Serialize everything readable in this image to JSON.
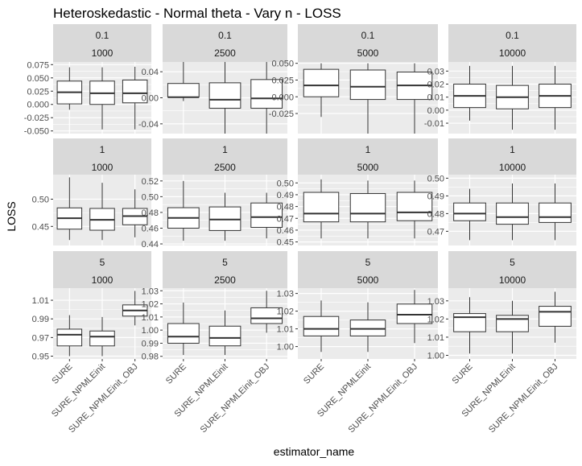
{
  "chart_data": {
    "type": "box",
    "title": "Heteroskedastic - Normal theta - Vary n - LOSS",
    "xlabel": "estimator_name",
    "ylabel": "LOSS",
    "categories": [
      "SURE",
      "SURE_NPMLEinit",
      "SURE_NPMLEinit_OBJ"
    ],
    "grid": true,
    "facets": [
      {
        "row_label": "0.1",
        "col_label": "1000",
        "ylim": [
          -0.055,
          0.08
        ],
        "ticks": [
          0.075,
          0.05,
          0.025,
          0.0,
          -0.025,
          -0.05
        ],
        "tick_labels": [
          "0.075",
          "0.050",
          "0.025",
          "0.000",
          "-0.025",
          "-0.050"
        ],
        "boxes": [
          {
            "min": -0.01,
            "q1": 0.001,
            "median": 0.023,
            "q3": 0.044,
            "max": 0.07
          },
          {
            "min": -0.047,
            "q1": 0.0,
            "median": 0.021,
            "q3": 0.044,
            "max": 0.07
          },
          {
            "min": -0.047,
            "q1": 0.003,
            "median": 0.021,
            "q3": 0.046,
            "max": 0.071
          }
        ]
      },
      {
        "row_label": "0.1",
        "col_label": "2500",
        "ylim": [
          -0.055,
          0.055
        ],
        "ticks": [
          0.04,
          0.0,
          -0.04
        ],
        "tick_labels": [
          "0.04",
          "0.00",
          "-0.04"
        ],
        "boxes": [
          {
            "min": -0.005,
            "q1": 0.001,
            "median": 0.001,
            "q3": 0.022,
            "max": 0.055
          },
          {
            "min": -0.055,
            "q1": -0.016,
            "median": -0.003,
            "q3": 0.023,
            "max": 0.055
          },
          {
            "min": -0.055,
            "q1": -0.016,
            "median": -0.001,
            "q3": 0.028,
            "max": 0.055
          }
        ]
      },
      {
        "row_label": "0.1",
        "col_label": "5000",
        "ylim": [
          -0.055,
          0.052
        ],
        "ticks": [
          0.05,
          0.025,
          0.0,
          -0.025
        ],
        "tick_labels": [
          "0.050",
          "0.025",
          "0.000",
          "-0.025"
        ],
        "boxes": [
          {
            "min": -0.03,
            "q1": 0.0,
            "median": 0.017,
            "q3": 0.041,
            "max": 0.05
          },
          {
            "min": -0.055,
            "q1": -0.004,
            "median": 0.015,
            "q3": 0.04,
            "max": 0.05
          },
          {
            "min": -0.055,
            "q1": -0.004,
            "median": 0.017,
            "q3": 0.037,
            "max": 0.05
          }
        ]
      },
      {
        "row_label": "0.1",
        "col_label": "10000",
        "ylim": [
          -0.018,
          0.037
        ],
        "ticks": [
          0.03,
          0.02,
          0.01,
          0.0,
          -0.01
        ],
        "tick_labels": [
          "0.03",
          "0.02",
          "0.01",
          "0.00",
          "-0.01"
        ],
        "boxes": [
          {
            "min": -0.008,
            "q1": 0.002,
            "median": 0.011,
            "q3": 0.02,
            "max": 0.034
          },
          {
            "min": -0.015,
            "q1": 0.001,
            "median": 0.01,
            "q3": 0.019,
            "max": 0.034
          },
          {
            "min": -0.015,
            "q1": 0.002,
            "median": 0.011,
            "q3": 0.02,
            "max": 0.034
          }
        ]
      },
      {
        "row_label": "1",
        "col_label": "1000",
        "ylim": [
          0.415,
          0.545
        ],
        "ticks": [
          0.5,
          0.45
        ],
        "tick_labels": [
          "0.50",
          "0.45"
        ],
        "boxes": [
          {
            "min": 0.425,
            "q1": 0.445,
            "median": 0.465,
            "q3": 0.484,
            "max": 0.54
          },
          {
            "min": 0.425,
            "q1": 0.443,
            "median": 0.462,
            "q3": 0.483,
            "max": 0.53
          },
          {
            "min": 0.43,
            "q1": 0.453,
            "median": 0.469,
            "q3": 0.483,
            "max": 0.518
          }
        ]
      },
      {
        "row_label": "1",
        "col_label": "2500",
        "ylim": [
          0.438,
          0.528
        ],
        "ticks": [
          0.52,
          0.5,
          0.48,
          0.46,
          0.44
        ],
        "tick_labels": [
          "0.52",
          "0.50",
          "0.48",
          "0.46",
          "0.44"
        ],
        "boxes": [
          {
            "min": 0.444,
            "q1": 0.46,
            "median": 0.473,
            "q3": 0.486,
            "max": 0.52
          },
          {
            "min": 0.444,
            "q1": 0.457,
            "median": 0.471,
            "q3": 0.487,
            "max": 0.505
          },
          {
            "min": 0.447,
            "q1": 0.461,
            "median": 0.474,
            "q3": 0.492,
            "max": 0.505
          }
        ]
      },
      {
        "row_label": "1",
        "col_label": "5000",
        "ylim": [
          0.447,
          0.507
        ],
        "ticks": [
          0.5,
          0.49,
          0.48,
          0.47,
          0.46,
          0.45
        ],
        "tick_labels": [
          "0.50",
          "0.49",
          "0.48",
          "0.47",
          "0.46",
          "0.45"
        ],
        "boxes": [
          {
            "min": 0.453,
            "q1": 0.467,
            "median": 0.474,
            "q3": 0.492,
            "max": 0.503
          },
          {
            "min": 0.453,
            "q1": 0.467,
            "median": 0.474,
            "q3": 0.491,
            "max": 0.502
          },
          {
            "min": 0.453,
            "q1": 0.468,
            "median": 0.475,
            "q3": 0.492,
            "max": 0.502
          }
        ]
      },
      {
        "row_label": "1",
        "col_label": "10000",
        "ylim": [
          0.462,
          0.502
        ],
        "ticks": [
          0.5,
          0.49,
          0.48,
          0.47
        ],
        "tick_labels": [
          "0.50",
          "0.49",
          "0.48",
          "0.47"
        ],
        "boxes": [
          {
            "min": 0.465,
            "q1": 0.476,
            "median": 0.48,
            "q3": 0.486,
            "max": 0.494
          },
          {
            "min": 0.465,
            "q1": 0.474,
            "median": 0.478,
            "q3": 0.486,
            "max": 0.497
          },
          {
            "min": 0.465,
            "q1": 0.475,
            "median": 0.478,
            "q3": 0.486,
            "max": 0.497
          }
        ]
      },
      {
        "row_label": "5",
        "col_label": "1000",
        "ylim": [
          0.947,
          1.023
        ],
        "ticks": [
          1.01,
          0.99,
          0.97,
          0.95
        ],
        "tick_labels": [
          "1.01",
          "0.99",
          "0.97",
          "0.95"
        ],
        "boxes": [
          {
            "min": 0.95,
            "q1": 0.961,
            "median": 0.973,
            "q3": 0.979,
            "max": 0.994
          },
          {
            "min": 0.95,
            "q1": 0.961,
            "median": 0.971,
            "q3": 0.977,
            "max": 0.992
          },
          {
            "min": 0.983,
            "q1": 0.993,
            "median": 0.999,
            "q3": 1.005,
            "max": 1.02
          }
        ]
      },
      {
        "row_label": "5",
        "col_label": "2500",
        "ylim": [
          0.978,
          1.032
        ],
        "ticks": [
          1.03,
          1.02,
          1.01,
          1.0,
          0.99,
          0.98
        ],
        "tick_labels": [
          "1.03",
          "1.02",
          "1.01",
          "1.00",
          "0.99",
          "0.98"
        ],
        "boxes": [
          {
            "min": 0.981,
            "q1": 0.99,
            "median": 0.995,
            "q3": 1.005,
            "max": 1.021
          },
          {
            "min": 0.981,
            "q1": 0.988,
            "median": 0.994,
            "q3": 1.003,
            "max": 1.015
          },
          {
            "min": 0.998,
            "q1": 1.005,
            "median": 1.009,
            "q3": 1.017,
            "max": 1.03
          }
        ]
      },
      {
        "row_label": "5",
        "col_label": "5000",
        "ylim": [
          0.993,
          1.033
        ],
        "ticks": [
          1.03,
          1.02,
          1.01,
          1.0
        ],
        "tick_labels": [
          "1.03",
          "1.02",
          "1.01",
          "1.00"
        ],
        "boxes": [
          {
            "min": 0.997,
            "q1": 1.006,
            "median": 1.01,
            "q3": 1.017,
            "max": 1.026
          },
          {
            "min": 0.997,
            "q1": 1.006,
            "median": 1.01,
            "q3": 1.015,
            "max": 1.025
          },
          {
            "min": 1.002,
            "q1": 1.013,
            "median": 1.018,
            "q3": 1.024,
            "max": 1.032
          }
        ]
      },
      {
        "row_label": "5",
        "col_label": "10000",
        "ylim": [
          0.998,
          1.037
        ],
        "ticks": [
          1.03,
          1.02,
          1.01,
          1.0
        ],
        "tick_labels": [
          "1.03",
          "1.02",
          "1.01",
          "1.00"
        ],
        "boxes": [
          {
            "min": 1.001,
            "q1": 1.013,
            "median": 1.021,
            "q3": 1.023,
            "max": 1.032
          },
          {
            "min": 1.001,
            "q1": 1.013,
            "median": 1.02,
            "q3": 1.022,
            "max": 1.03
          },
          {
            "min": 1.007,
            "q1": 1.016,
            "median": 1.024,
            "q3": 1.027,
            "max": 1.035
          }
        ]
      }
    ]
  },
  "colors": {
    "panel_bg": "#ebebeb",
    "strip_bg": "#d9d9d9",
    "grid": "#ffffff",
    "box_fill": "#ffffff",
    "box_stroke": "#333333",
    "text": "#1a1a1a",
    "tick_text": "#4d4d4d"
  }
}
